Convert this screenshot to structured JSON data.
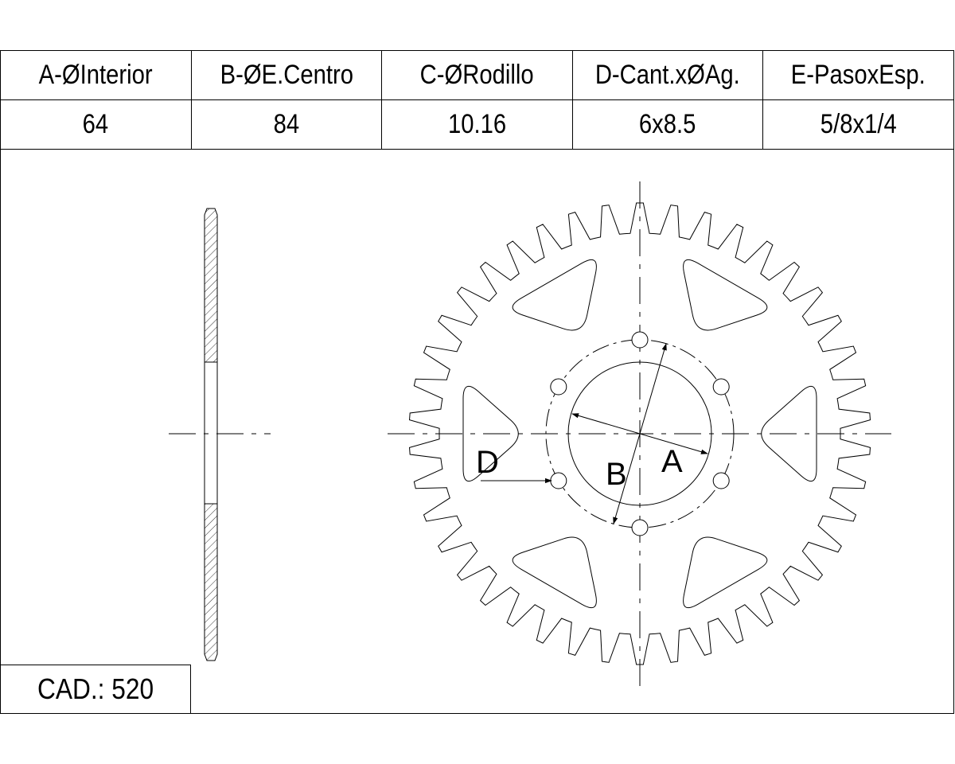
{
  "spec_table": {
    "headers": [
      "A-ØInterior",
      "B-ØE.Centro",
      "C-ØRodillo",
      "D-Cant.xØAg.",
      "E-PasoxEsp."
    ],
    "values": [
      "64",
      "84",
      "10.16",
      "6x8.5",
      "5/8x1/4"
    ]
  },
  "cad_label": "CAD.: 520",
  "drawing": {
    "label_a": "A",
    "label_b": "B",
    "label_d": "D",
    "teeth": 42,
    "bolt_holes": 6,
    "lightening_windows": 6
  }
}
